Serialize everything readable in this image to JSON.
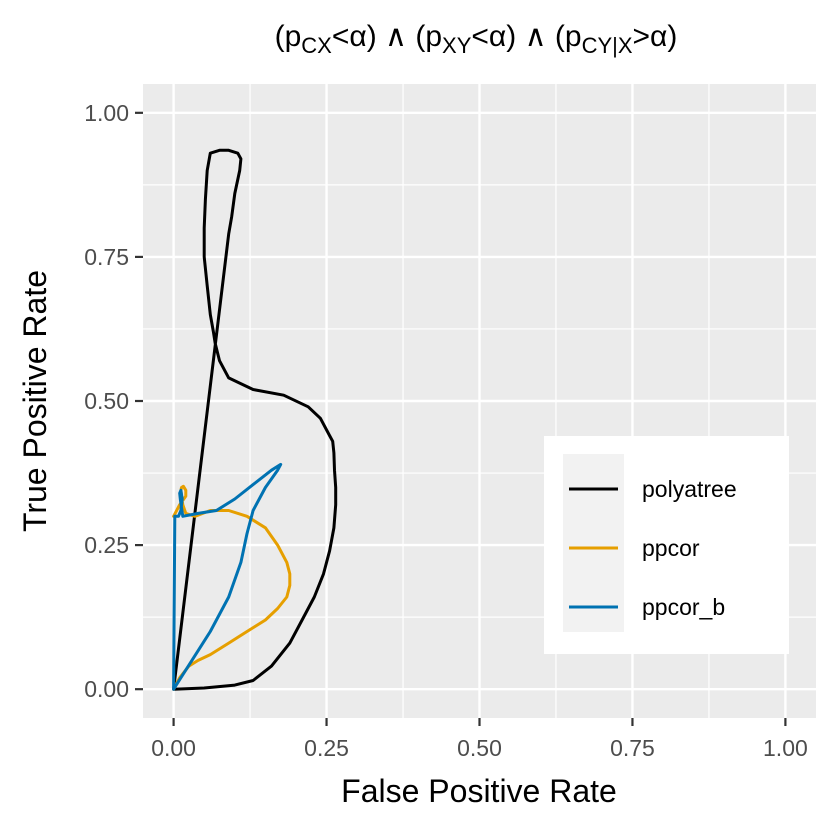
{
  "chart_data": {
    "type": "line",
    "title_parts": {
      "p_open": "(p",
      "sub_cx": "CX",
      "lt_alpha_close": "<α)",
      "and1": " ∧ ",
      "p_open2": "(p",
      "sub_xy": "XY",
      "lt_alpha_close2": "<α)",
      "and2": " ∧ ",
      "p_open3": "(p",
      "sub_cyx": "CY|X",
      "gt_alpha_close": ">α)"
    },
    "xlabel": "False Positive Rate",
    "ylabel": "True Positive Rate",
    "xlim": [
      -0.05,
      1.05
    ],
    "ylim": [
      -0.05,
      1.05
    ],
    "x_ticks": [
      0.0,
      0.25,
      0.5,
      0.75,
      1.0
    ],
    "x_tick_labels": [
      "0.00",
      "0.25",
      "0.50",
      "0.75",
      "1.00"
    ],
    "y_ticks": [
      0.0,
      0.25,
      0.5,
      0.75,
      1.0
    ],
    "y_tick_labels": [
      "0.00",
      "0.25",
      "0.50",
      "0.75",
      "1.00"
    ],
    "legend_position": "right",
    "series": [
      {
        "name": "polyatree",
        "color": "#000000",
        "x": [
          0.0,
          0.05,
          0.1,
          0.13,
          0.16,
          0.19,
          0.21,
          0.23,
          0.245,
          0.255,
          0.262,
          0.265,
          0.265,
          0.263,
          0.262,
          0.26,
          0.255,
          0.24,
          0.22,
          0.18,
          0.13,
          0.09,
          0.075,
          0.068,
          0.065,
          0.06,
          0.055,
          0.05,
          0.05,
          0.052,
          0.055,
          0.06,
          0.075,
          0.09,
          0.105,
          0.11,
          0.108,
          0.1,
          0.095,
          0.09,
          0.0
        ],
        "y": [
          0.0,
          0.002,
          0.007,
          0.015,
          0.04,
          0.08,
          0.12,
          0.16,
          0.2,
          0.24,
          0.28,
          0.32,
          0.35,
          0.38,
          0.41,
          0.43,
          0.44,
          0.47,
          0.49,
          0.51,
          0.52,
          0.54,
          0.57,
          0.6,
          0.62,
          0.65,
          0.7,
          0.75,
          0.8,
          0.85,
          0.9,
          0.93,
          0.935,
          0.935,
          0.93,
          0.92,
          0.9,
          0.86,
          0.82,
          0.79,
          0.0
        ]
      },
      {
        "name": "ppcor",
        "color": "#E69F00",
        "x": [
          0.0,
          0.01,
          0.025,
          0.04,
          0.06,
          0.09,
          0.12,
          0.15,
          0.17,
          0.185,
          0.19,
          0.19,
          0.185,
          0.17,
          0.15,
          0.12,
          0.09,
          0.06,
          0.035,
          0.02,
          0.015,
          0.013,
          0.012,
          0.013,
          0.016,
          0.02,
          0.02,
          0.01,
          0.0
        ],
        "y": [
          0.0,
          0.02,
          0.04,
          0.05,
          0.06,
          0.08,
          0.1,
          0.12,
          0.14,
          0.16,
          0.18,
          0.2,
          0.22,
          0.25,
          0.28,
          0.3,
          0.31,
          0.31,
          0.3,
          0.305,
          0.32,
          0.335,
          0.345,
          0.35,
          0.352,
          0.345,
          0.335,
          0.32,
          0.3
        ]
      },
      {
        "name": "ppcor_b",
        "color": "#0072B2",
        "x": [
          0.0,
          0.03,
          0.06,
          0.09,
          0.11,
          0.12,
          0.13,
          0.15,
          0.17,
          0.175,
          0.16,
          0.13,
          0.1,
          0.07,
          0.04,
          0.015,
          0.013,
          0.011,
          0.01,
          0.012,
          0.014,
          0.012,
          0.008,
          0.004,
          0.002,
          0.0
        ],
        "y": [
          0.0,
          0.05,
          0.1,
          0.16,
          0.22,
          0.27,
          0.31,
          0.35,
          0.38,
          0.39,
          0.38,
          0.355,
          0.33,
          0.31,
          0.305,
          0.3,
          0.315,
          0.33,
          0.34,
          0.345,
          0.33,
          0.31,
          0.3,
          0.3,
          0.3,
          0.0
        ]
      }
    ]
  }
}
